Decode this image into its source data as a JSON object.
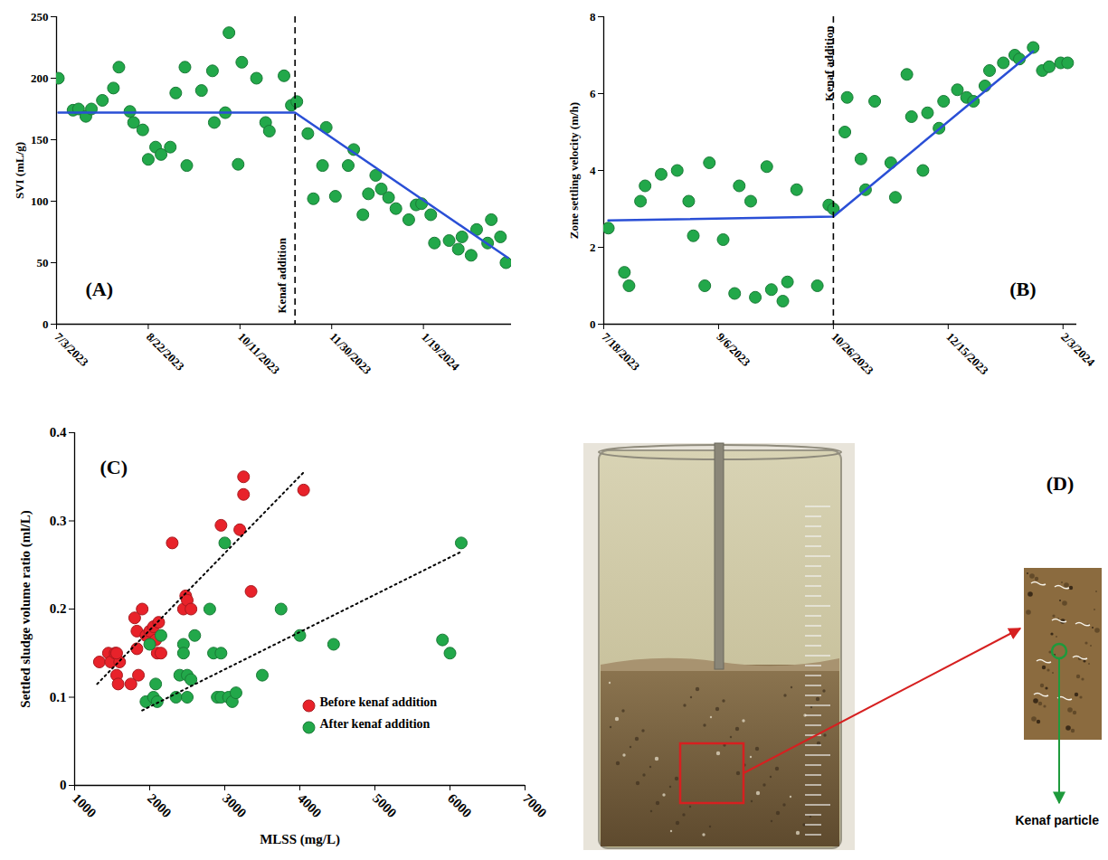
{
  "chart_data": [
    {
      "type": "scatter",
      "panel_label": "(A)",
      "y_label": "SVI (mL/g)",
      "xlim": [
        "2023-07-03",
        "2024-03-07"
      ],
      "xticks": [
        {
          "value": "2023-07-03",
          "label": "7/3/2023"
        },
        {
          "value": "2023-08-22",
          "label": "8/22/2023"
        },
        {
          "value": "2023-10-11",
          "label": "10/11/2023"
        },
        {
          "value": "2023-11-30",
          "label": "11/30/2023"
        },
        {
          "value": "2024-01-19",
          "label": "1/19/2024"
        }
      ],
      "ylim": [
        0,
        250
      ],
      "yticks": [
        0,
        50,
        100,
        150,
        200,
        250
      ],
      "series": [
        {
          "type": "scatter",
          "color": "#22a84a",
          "marker": "circle",
          "x": [
            "2023-07-04",
            "2023-07-12",
            "2023-07-15",
            "2023-07-19",
            "2023-07-22",
            "2023-07-28",
            "2023-08-03",
            "2023-08-06",
            "2023-08-12",
            "2023-08-14",
            "2023-08-19",
            "2023-08-22",
            "2023-08-26",
            "2023-08-29",
            "2023-09-03",
            "2023-09-06",
            "2023-09-11",
            "2023-09-12",
            "2023-09-20",
            "2023-09-26",
            "2023-09-27",
            "2023-10-03",
            "2023-10-05",
            "2023-10-10",
            "2023-10-12",
            "2023-10-20",
            "2023-10-25",
            "2023-10-27",
            "2023-11-04",
            "2023-11-08",
            "2023-11-11",
            "2023-11-17",
            "2023-11-20",
            "2023-11-25",
            "2023-11-27",
            "2023-12-02",
            "2023-12-09",
            "2023-12-12",
            "2023-12-17",
            "2023-12-20",
            "2023-12-24",
            "2023-12-27",
            "2023-12-31",
            "2024-01-04",
            "2024-01-11",
            "2024-01-15",
            "2024-01-18",
            "2024-01-23",
            "2024-01-25",
            "2024-02-02",
            "2024-02-07",
            "2024-02-09",
            "2024-02-14",
            "2024-02-17",
            "2024-02-23",
            "2024-02-25",
            "2024-03-01",
            "2024-03-04"
          ],
          "values": [
            200,
            174,
            175,
            169,
            175,
            182,
            192,
            209,
            173,
            164,
            158,
            134,
            144,
            138,
            144,
            188,
            209,
            129,
            190,
            206,
            164,
            172,
            237,
            130,
            213,
            200,
            164,
            157,
            202,
            178,
            181,
            155,
            102,
            129,
            160,
            104,
            129,
            142,
            89,
            106,
            121,
            110,
            103,
            94,
            85,
            97,
            98,
            89,
            66,
            68,
            61,
            71,
            56,
            77,
            66,
            85,
            71,
            50
          ]
        },
        {
          "type": "line",
          "color": "#2a4fd6",
          "line_style": "solid",
          "x": [
            "2023-07-04",
            "2023-11-10",
            "2024-03-05"
          ],
          "values": [
            172,
            172,
            54
          ]
        }
      ],
      "annotations": [
        {
          "text": "Kenaf addition",
          "x": "2023-11-10",
          "line_style": "dashed"
        }
      ]
    },
    {
      "type": "scatter",
      "panel_label": "(B)",
      "y_label": "Zone settling velocity (m/h)",
      "xlim": [
        "2023-07-18",
        "2024-02-09"
      ],
      "xticks": [
        {
          "value": "2023-07-18",
          "label": "7/18/2023"
        },
        {
          "value": "2023-09-06",
          "label": "9/6/2023"
        },
        {
          "value": "2023-10-26",
          "label": "10/26/2023"
        },
        {
          "value": "2023-12-15",
          "label": "12/15/2023"
        },
        {
          "value": "2024-02-03",
          "label": "2/3/2024"
        }
      ],
      "ylim": [
        0,
        8
      ],
      "yticks": [
        0,
        2,
        4,
        6,
        8
      ],
      "series": [
        {
          "type": "scatter",
          "color": "#22a84a",
          "marker": "circle",
          "x": [
            "2023-07-20",
            "2023-07-27",
            "2023-07-29",
            "2023-08-03",
            "2023-08-05",
            "2023-08-12",
            "2023-08-19",
            "2023-08-24",
            "2023-08-26",
            "2023-08-31",
            "2023-09-02",
            "2023-09-08",
            "2023-09-13",
            "2023-09-15",
            "2023-09-20",
            "2023-09-22",
            "2023-09-27",
            "2023-09-29",
            "2023-10-04",
            "2023-10-06",
            "2023-10-10",
            "2023-10-19",
            "2023-10-24",
            "2023-10-26",
            "2023-10-31",
            "2023-11-01",
            "2023-11-07",
            "2023-11-09",
            "2023-11-13",
            "2023-11-20",
            "2023-11-22",
            "2023-11-27",
            "2023-11-29",
            "2023-12-04",
            "2023-12-06",
            "2023-12-11",
            "2023-12-13",
            "2023-12-19",
            "2023-12-23",
            "2023-12-26",
            "2023-12-31",
            "2024-01-02",
            "2024-01-08",
            "2024-01-13",
            "2024-01-15",
            "2024-01-21",
            "2024-01-25",
            "2024-01-28",
            "2024-02-02",
            "2024-02-05"
          ],
          "values": [
            2.5,
            1.35,
            1,
            3.2,
            3.6,
            3.9,
            4,
            3.2,
            2.3,
            1,
            4.2,
            2.2,
            0.8,
            3.6,
            3.2,
            0.7,
            4.1,
            0.9,
            0.6,
            1.1,
            3.5,
            1,
            3.1,
            3,
            5,
            5.9,
            4.3,
            3.5,
            5.8,
            4.2,
            3.3,
            6.5,
            5.4,
            4,
            5.5,
            5.1,
            5.8,
            6.1,
            5.9,
            5.8,
            6.2,
            6.6,
            6.8,
            7,
            6.9,
            7.2,
            6.6,
            6.7,
            6.8,
            6.8
          ]
        },
        {
          "type": "line",
          "color": "#2a4fd6",
          "line_style": "solid",
          "x": [
            "2023-07-20",
            "2023-10-26",
            "2024-01-21"
          ],
          "values": [
            2.7,
            2.8,
            7.1
          ]
        }
      ],
      "annotations": [
        {
          "text": "Kenaf addition",
          "x": "2023-10-26",
          "line_style": "dashed"
        }
      ]
    },
    {
      "type": "scatter",
      "panel_label": "(C)",
      "x_label": "MLSS (mg/L)",
      "y_label": "Settled sludge volume ratio (ml/L)",
      "xlim": [
        1000,
        7000
      ],
      "xticks": [
        1000,
        2000,
        3000,
        4000,
        5000,
        6000,
        7000
      ],
      "ylim": [
        0,
        0.4
      ],
      "yticks": [
        0,
        0.1,
        0.2,
        0.3,
        0.4
      ],
      "legend": "lower right",
      "series": [
        {
          "name": "Before kenaf addition",
          "type": "scatter",
          "color": "#e8222a",
          "marker": "circle",
          "x": [
            1330,
            1450,
            1480,
            1540,
            1560,
            1580,
            1600,
            1560,
            1750,
            1800,
            1830,
            1850,
            1830,
            1900,
            1950,
            2000,
            2050,
            2080,
            2100,
            2120,
            2150,
            2300,
            2450,
            2480,
            2500,
            2550,
            2950,
            3250,
            3250,
            3200,
            3350,
            4050
          ],
          "values": [
            0.14,
            0.15,
            0.14,
            0.15,
            0.125,
            0.115,
            0.14,
            0.15,
            0.115,
            0.19,
            0.175,
            0.125,
            0.155,
            0.2,
            0.17,
            0.175,
            0.18,
            0.165,
            0.15,
            0.185,
            0.15,
            0.275,
            0.2,
            0.215,
            0.21,
            0.2,
            0.295,
            0.35,
            0.33,
            0.29,
            0.22,
            0.335
          ]
        },
        {
          "name": "After kenaf addition",
          "type": "scatter",
          "color": "#22a84a",
          "marker": "circle",
          "x": [
            1950,
            2000,
            2050,
            2080,
            2100,
            2150,
            2350,
            2400,
            2450,
            2450,
            2500,
            2500,
            2550,
            2600,
            2800,
            2850,
            2900,
            2950,
            2950,
            3000,
            3050,
            3100,
            3150,
            3500,
            3750,
            4000,
            4450,
            5900,
            6000,
            6150
          ],
          "values": [
            0.095,
            0.16,
            0.1,
            0.115,
            0.095,
            0.17,
            0.1,
            0.125,
            0.16,
            0.15,
            0.125,
            0.1,
            0.12,
            0.17,
            0.2,
            0.15,
            0.1,
            0.15,
            0.1,
            0.275,
            0.1,
            0.095,
            0.105,
            0.125,
            0.2,
            0.17,
            0.16,
            0.165,
            0.15,
            0.275
          ]
        },
        {
          "type": "line",
          "color": "#000000",
          "line_style": "dotted",
          "x": [
            1300,
            4050
          ],
          "values": [
            0.115,
            0.355
          ]
        },
        {
          "type": "line",
          "color": "#000000",
          "line_style": "dotted",
          "x": [
            1900,
            6150
          ],
          "values": [
            0.085,
            0.265
          ]
        }
      ]
    }
  ],
  "image_panel": {
    "panel_label": "(D)",
    "annotation": "Kenaf particle"
  }
}
